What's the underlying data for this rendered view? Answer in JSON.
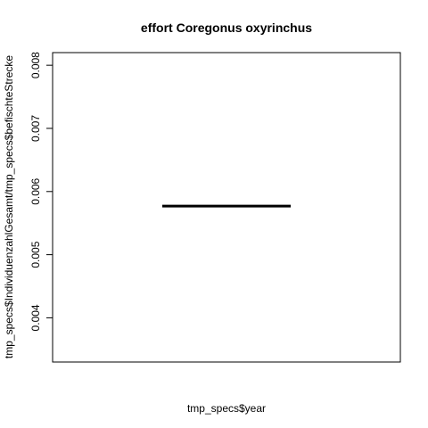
{
  "chart_data": {
    "type": "line",
    "title": "effort Coregonus oxyrinchus",
    "xlabel": "tmp_specs$year",
    "ylabel": "tmp_specs$IndividuenzahlGesamt/tmp_specs$befischteStrecke",
    "ylim": [
      0.0033,
      0.0082
    ],
    "yticks": [
      0.004,
      0.005,
      0.006,
      0.007,
      0.008
    ],
    "ytick_labels": [
      "0.004",
      "0.005",
      "0.006",
      "0.007",
      "0.008"
    ],
    "grid": false,
    "series": [
      {
        "values": [
          0.00577,
          0.00577
        ]
      }
    ],
    "line_color": "#000000"
  }
}
